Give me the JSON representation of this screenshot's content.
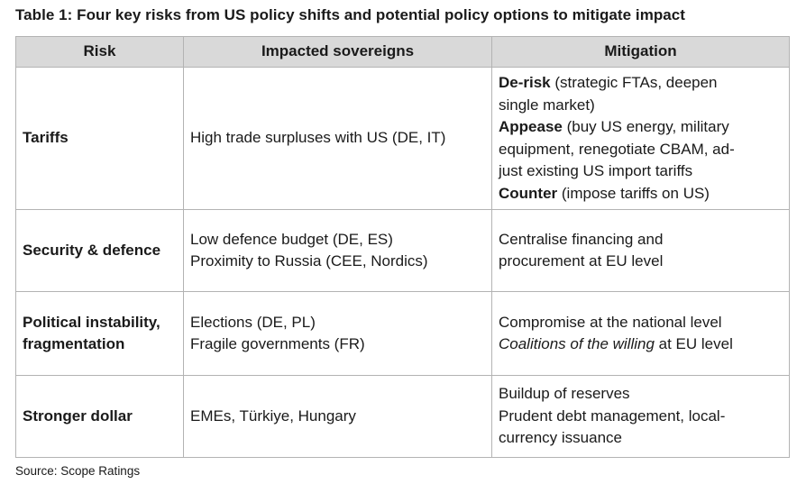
{
  "caption": "Table 1: Four key risks from US policy shifts and potential policy options to mitigate impact",
  "headers": {
    "risk": "Risk",
    "sovereigns": "Impacted sovereigns",
    "mitigation": "Mitigation"
  },
  "rows": [
    {
      "risk": "Tariffs",
      "sovereigns": [
        "High trade surpluses with US (DE, IT)"
      ],
      "mitigation": {
        "l1_bold": "De-risk",
        "l1_rest": " (strategic FTAs, deepen",
        "l2": "single market)",
        "l3_bold": "Appease",
        "l3_rest": " (buy US energy, military",
        "l4": "equipment, renegotiate CBAM, ad-",
        "l5": "just existing US import tariffs",
        "l6_bold": "Counter",
        "l6_rest": " (impose tariffs on US)"
      }
    },
    {
      "risk": "Security & defence",
      "sovereigns": [
        "Low defence budget (DE, ES)",
        "Proximity to Russia (CEE, Nordics)"
      ],
      "mitigation": [
        "Centralise financing and",
        "procurement at EU level"
      ]
    },
    {
      "risk_line1": "Political instability,",
      "risk_line2": "fragmentation",
      "sovereigns": [
        "Elections (DE, PL)",
        "Fragile governments (FR)"
      ],
      "mitigation": {
        "l1": "Compromise at the national level",
        "l2_italic": "Coalitions of the willing",
        "l2_rest": " at EU level"
      }
    },
    {
      "risk": "Stronger dollar",
      "sovereigns": [
        "EMEs, Türkiye, Hungary"
      ],
      "mitigation": [
        "Buildup of reserves",
        "Prudent debt management, local-",
        "currency issuance"
      ]
    }
  ],
  "source": "Source: Scope Ratings"
}
